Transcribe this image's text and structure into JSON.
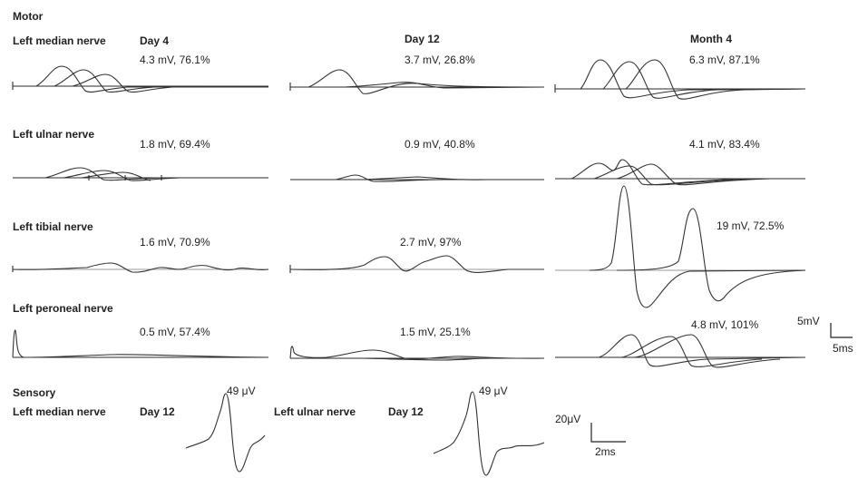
{
  "section_motor": "Motor",
  "section_sensory": "Sensory",
  "columns": [
    "Day 4",
    "Day 12",
    "Month 4"
  ],
  "motor_rows": [
    {
      "nerve": "Left median nerve",
      "values": [
        "4.3 mV, 76.1%",
        "3.7 mV, 26.8%",
        "6.3 mV, 87.1%"
      ]
    },
    {
      "nerve": "Left ulnar nerve",
      "values": [
        "1.8 mV, 69.4%",
        "0.9 mV, 40.8%",
        "4.1 mV, 83.4%"
      ]
    },
    {
      "nerve": "Left tibial nerve",
      "values": [
        "1.6 mV, 70.9%",
        "2.7 mV, 97%",
        "19 mV, 72.5%"
      ]
    },
    {
      "nerve": "Left peroneal nerve",
      "values": [
        "0.5 mV, 57.4%",
        "1.5 mV, 25.1%",
        "4.8 mV, 101%"
      ]
    }
  ],
  "sensory": [
    {
      "nerve": "Left median nerve",
      "day": "Day 12",
      "amplitude": "49 μV"
    },
    {
      "nerve": "Left ulnar nerve",
      "day": "Day 12",
      "amplitude": "49 μV"
    }
  ],
  "motor_scale": {
    "v": "5mV",
    "t": "5ms"
  },
  "sensory_scale": {
    "v": "20μV",
    "t": "2ms"
  }
}
